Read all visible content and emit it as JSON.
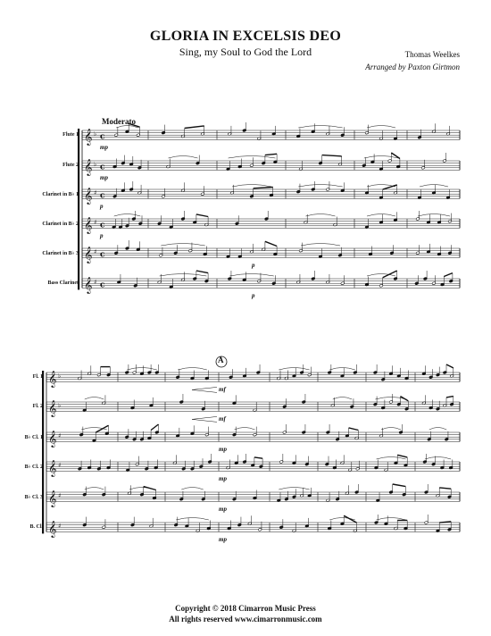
{
  "header": {
    "title": "GLORIA IN EXCELSIS DEO",
    "subtitle": "Sing, my Soul to God the Lord",
    "composer": "Thomas Weelkes",
    "arranger": "Arranged by Paxton Girtmon"
  },
  "tempo": "Moderato",
  "rehearsal_mark": "A",
  "system1": {
    "instruments": [
      "Flute 1",
      "Flute 2",
      "Clarinet in B♭ 1",
      "Clarinet in B♭ 2",
      "Clarinet in B♭ 3",
      "Bass Clarinet"
    ],
    "dynamics": [
      "mp",
      "mp",
      "p",
      "p",
      "p",
      "p"
    ]
  },
  "system2": {
    "instruments": [
      "Fl. 1",
      "Fl. 2",
      "B♭ Cl. 1",
      "B♭ Cl. 2",
      "B♭ Cl. 3",
      "B. Cl."
    ],
    "dynamics": [
      "mf",
      "mf",
      "mp",
      "mp",
      "mp",
      "mp"
    ]
  },
  "footer": {
    "copyright": "Copyright © 2018 Cimarron Music Press",
    "rights": "All rights reserved    www.cimarronmusic.com"
  }
}
